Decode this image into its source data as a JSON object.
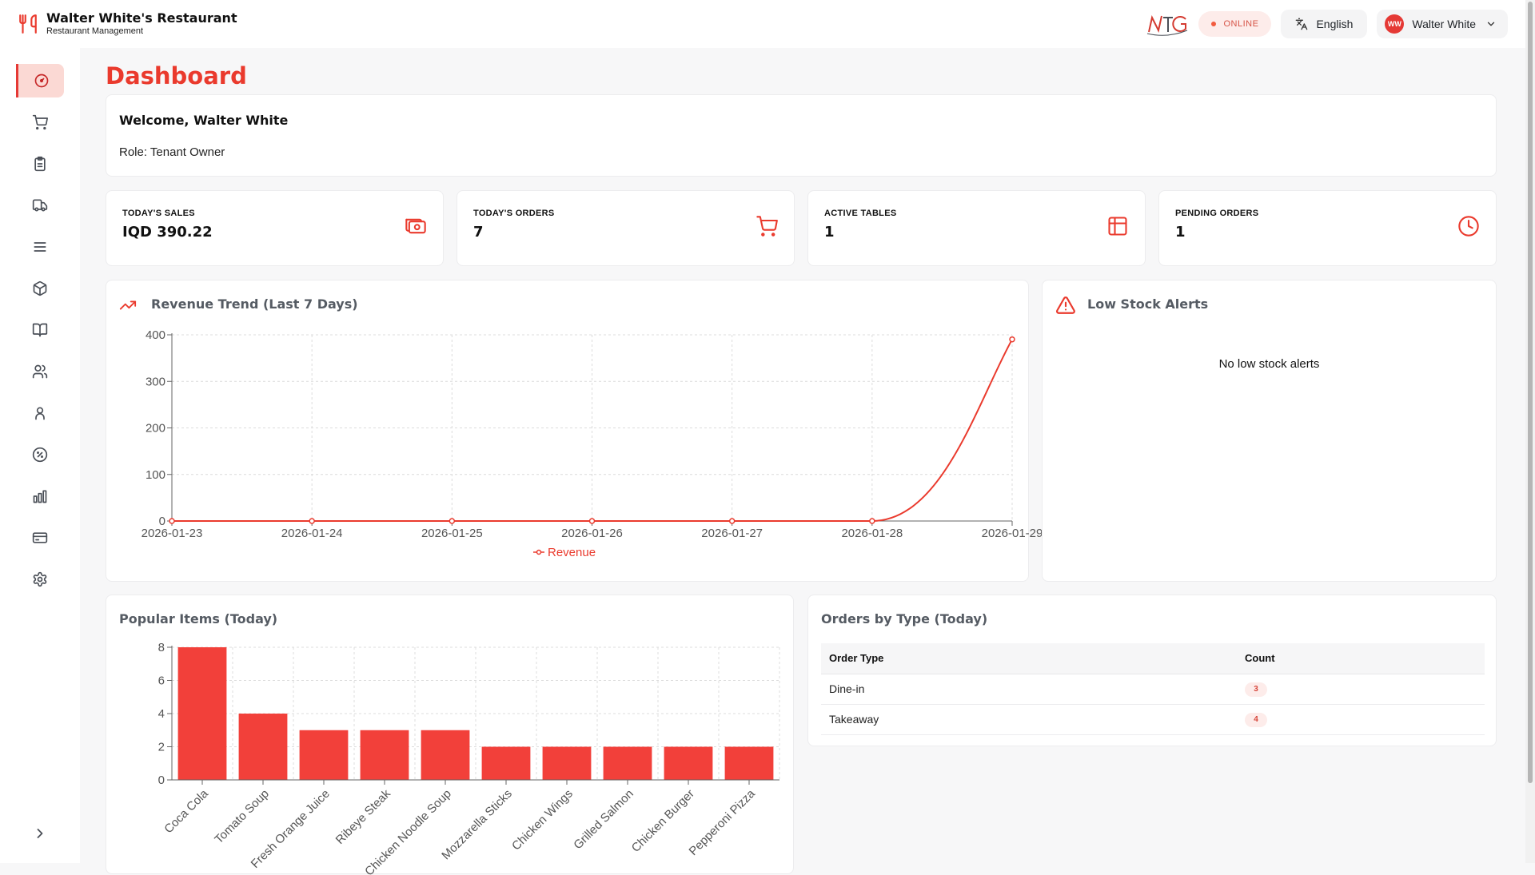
{
  "app": {
    "name": "Walter White's Restaurant",
    "subtitle": "Restaurant Management"
  },
  "topbar": {
    "status": "ONLINE",
    "language": "English",
    "user_initials": "WW",
    "user_name": "Walter White"
  },
  "sidebar": {
    "items": [
      {
        "icon": "dashboard-icon",
        "active": true
      },
      {
        "icon": "cart-icon"
      },
      {
        "icon": "clipboard-icon"
      },
      {
        "icon": "truck-icon"
      },
      {
        "icon": "menu-lines-icon"
      },
      {
        "icon": "box-icon"
      },
      {
        "icon": "book-icon"
      },
      {
        "icon": "users-icon"
      },
      {
        "icon": "user-icon"
      },
      {
        "icon": "percent-icon"
      },
      {
        "icon": "bar-chart-icon"
      },
      {
        "icon": "credit-card-icon"
      },
      {
        "icon": "settings-icon"
      }
    ],
    "collapse_icon": "chevron-right-icon"
  },
  "page": {
    "title": "Dashboard"
  },
  "welcome": {
    "title": "Welcome, Walter White",
    "role": "Role: Tenant Owner"
  },
  "stats": [
    {
      "label": "TODAY'S SALES",
      "value": "IQD 390.22",
      "icon": "cash-icon"
    },
    {
      "label": "TODAY'S ORDERS",
      "value": "7",
      "icon": "cart-icon"
    },
    {
      "label": "ACTIVE TABLES",
      "value": "1",
      "icon": "table-grid-icon"
    },
    {
      "label": "PENDING ORDERS",
      "value": "1",
      "icon": "clock-icon"
    }
  ],
  "revenue_card": {
    "title": "Revenue Trend (Last 7 Days)"
  },
  "alerts_card": {
    "title": "Low Stock Alerts",
    "empty_text": "No low stock alerts"
  },
  "popular_card": {
    "title": "Popular Items (Today)"
  },
  "orders_card": {
    "title": "Orders by Type (Today)",
    "columns": [
      "Order Type",
      "Count"
    ],
    "rows": [
      {
        "type": "Dine-in",
        "count": "3"
      },
      {
        "type": "Takeaway",
        "count": "4"
      }
    ]
  },
  "colors": {
    "accent": "#ea3a2d",
    "bar": "#f2403a"
  },
  "chart_data": [
    {
      "type": "line",
      "x": [
        "2026-01-23",
        "2026-01-24",
        "2026-01-25",
        "2026-01-26",
        "2026-01-27",
        "2026-01-28",
        "2026-01-29"
      ],
      "series": [
        {
          "name": "Revenue",
          "values": [
            0,
            0,
            0,
            0,
            0,
            0,
            390.22
          ]
        }
      ],
      "ylim": [
        0,
        400
      ],
      "yticks": [
        0,
        100,
        200,
        300,
        400
      ],
      "grid": true,
      "legend": "bottom"
    },
    {
      "type": "bar",
      "categories": [
        "Coca Cola",
        "Tomato Soup",
        "Fresh Orange Juice",
        "Ribeye Steak",
        "Chicken Noodle Soup",
        "Mozzarella Sticks",
        "Chicken Wings",
        "Grilled Salmon",
        "Chicken Burger",
        "Pepperoni Pizza"
      ],
      "values": [
        8,
        4,
        3,
        3,
        3,
        2,
        2,
        2,
        2,
        2
      ],
      "ylim": [
        0,
        8
      ],
      "yticks": [
        0,
        2,
        4,
        6,
        8
      ],
      "grid": true
    }
  ]
}
